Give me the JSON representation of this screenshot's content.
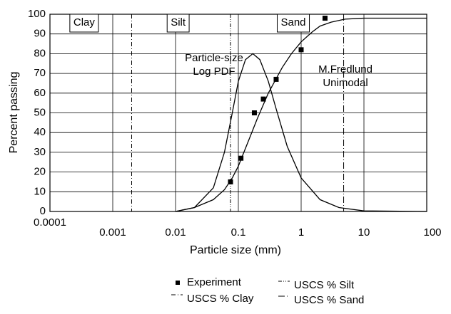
{
  "chart_data": {
    "type": "scatter",
    "xlabel": "Particle size (mm)",
    "ylabel": "Percent passing",
    "xscale": "log",
    "xlim": [
      0.0001,
      100
    ],
    "xticks": [
      0.0001,
      0.001,
      0.01,
      0.1,
      1,
      10,
      100
    ],
    "ylim": [
      0,
      100
    ],
    "yticks": [
      0,
      10,
      20,
      30,
      40,
      50,
      60,
      70,
      80,
      90,
      100
    ],
    "grid": true,
    "legend": "bottom",
    "series": [
      {
        "name": "Experiment",
        "color": "#000000",
        "x": [
          0.075,
          0.11,
          0.18,
          0.25,
          0.4,
          1.0,
          2.4
        ],
        "values": [
          15,
          27,
          50,
          57,
          67,
          82,
          98
        ]
      }
    ],
    "reference_lines": [
      {
        "name": "USCS % Silt",
        "x": 0.075,
        "dash": "dash-dot-dot"
      },
      {
        "name": "USCS % Clay",
        "x": 0.002,
        "dash": "dash-dot"
      },
      {
        "name": "USCS % Sand",
        "x": 4.75,
        "dash": "long-dash-dot"
      }
    ],
    "curves": [
      {
        "x": [
          0.01,
          0.02,
          0.04,
          0.06,
          0.08,
          0.1,
          0.15,
          0.2,
          0.3,
          0.5,
          0.7,
          1,
          1.5,
          2,
          3,
          5,
          10,
          100
        ],
        "values": [
          0,
          2,
          6,
          11,
          17,
          23,
          37,
          47,
          60,
          73,
          80,
          86,
          91,
          94,
          96,
          97.5,
          98,
          98
        ]
      },
      {
        "x": [
          0.01,
          0.02,
          0.04,
          0.06,
          0.08,
          0.1,
          0.13,
          0.17,
          0.22,
          0.3,
          0.4,
          0.6,
          1,
          2,
          4,
          10,
          100
        ],
        "values": [
          0,
          2,
          12,
          30,
          50,
          66,
          77,
          80,
          77,
          66,
          52,
          33,
          17,
          6,
          2,
          0.3,
          0
        ]
      }
    ],
    "annotations": [
      "Particle-size",
      "Log PDF",
      "M.Fredlund",
      "Unimodal"
    ],
    "zones": [
      {
        "label": "Clay",
        "x": 0.00035
      },
      {
        "label": "Silt",
        "x": 0.011
      },
      {
        "label": "Sand",
        "x": 0.75
      }
    ]
  }
}
